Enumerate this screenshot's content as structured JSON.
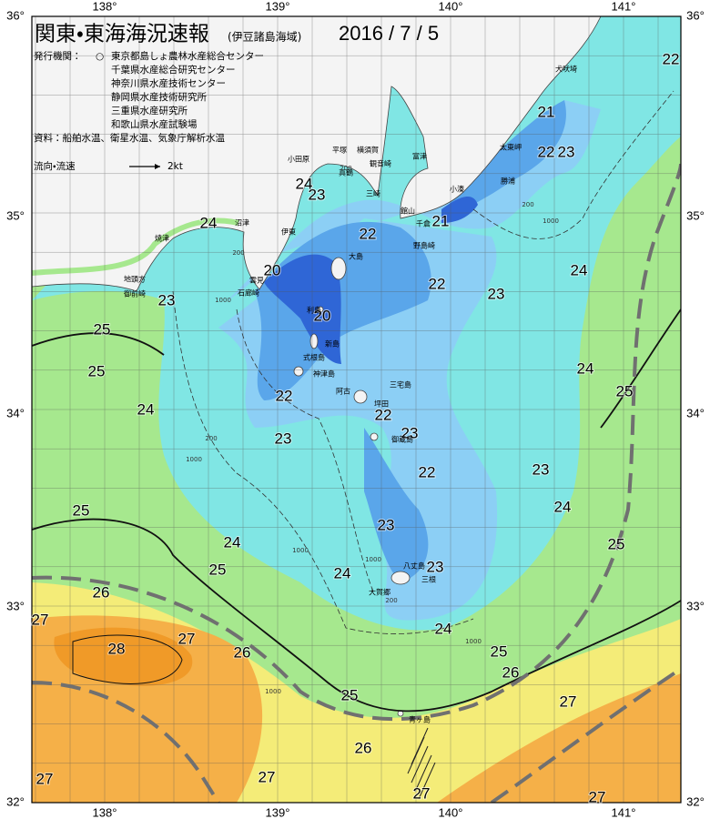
{
  "header": {
    "title": "関東・東海海況速報",
    "subtitle": "(伊豆諸島海域)",
    "date": "2016 / 7 / 5"
  },
  "agencies": {
    "label": "発行機関：",
    "symbol": "○",
    "items": [
      "東京都島しょ農林水産総合センター",
      "千葉県水産総合研究センター",
      "神奈川県水産技術センター",
      "静岡県水産技術研究所",
      "三重県水産研究所",
      "和歌山県水産試験場"
    ]
  },
  "source": "資料：船舶水温、衛星水温、気象庁解析水温",
  "legend": {
    "label": "流向・流速",
    "speed": "2kt"
  },
  "axes": {
    "lon": [
      "138°",
      "139°",
      "140°",
      "141°"
    ],
    "lat": [
      "36°",
      "35°",
      "34°",
      "33°",
      "32°"
    ]
  },
  "isotherm_labels": [
    "22",
    "21",
    "22",
    "23",
    "24",
    "23",
    "24",
    "22",
    "21",
    "24",
    "20",
    "22",
    "23",
    "23",
    "25",
    "20",
    "25",
    "24",
    "25",
    "22",
    "24",
    "22",
    "23",
    "23",
    "22",
    "23",
    "25",
    "24",
    "23",
    "24",
    "25",
    "25",
    "24",
    "23",
    "26",
    "27",
    "24",
    "28",
    "27",
    "26",
    "25",
    "26",
    "25",
    "27",
    "26",
    "27",
    "27",
    "27",
    "27"
  ],
  "place_names": [
    "犬吠埼",
    "太東岬",
    "勝浦",
    "小湊",
    "館山",
    "千倉",
    "野島崎",
    "富津",
    "横須賀",
    "観音崎",
    "平塚",
    "真鶴",
    "三崎",
    "小田原",
    "沼津",
    "焼津",
    "伊東",
    "大島",
    "地頭方",
    "御前崎",
    "石廊崎",
    "雲見",
    "利島",
    "新島",
    "式根島",
    "神津島",
    "三宅島",
    "阿古",
    "坪田",
    "御蔵島",
    "八丈島",
    "三根",
    "大賀郷",
    "青ヶ島"
  ],
  "depth_labels": [
    "200",
    "1000",
    "200",
    "1000",
    "200",
    "1000",
    "1000",
    "200",
    "1000",
    "1000",
    "200",
    "1000"
  ]
}
